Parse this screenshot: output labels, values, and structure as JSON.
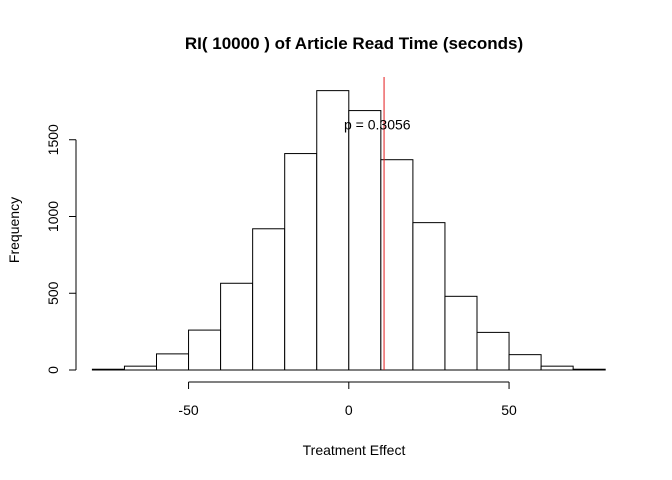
{
  "chart_data": {
    "type": "histogram",
    "title": "RI( 10000 ) of Article Read Time (seconds)",
    "xlabel": "Treatment Effect",
    "ylabel": "Frequency",
    "xlim": [
      -80,
      90
    ],
    "ylim": [
      0,
      1900
    ],
    "x_ticks": [
      -50,
      0,
      50
    ],
    "x_tick_labels": [
      "-50",
      "0",
      "50"
    ],
    "y_ticks": [
      0,
      500,
      1000,
      1500
    ],
    "y_tick_labels": [
      "0",
      "500",
      "1000",
      "1500"
    ],
    "bin_edges": [
      -80,
      -70,
      -60,
      -50,
      -40,
      -30,
      -20,
      -10,
      0,
      10,
      20,
      30,
      40,
      50,
      60,
      70,
      80
    ],
    "counts": [
      5,
      25,
      105,
      260,
      565,
      920,
      1410,
      1820,
      1690,
      1370,
      960,
      480,
      245,
      100,
      25,
      5
    ],
    "reference_line": {
      "x": 11,
      "color": "#e41a1c"
    },
    "annotation": {
      "text": "p =  0.3056",
      "x": 8,
      "y": 1600
    },
    "bar_fill": "#ffffff",
    "bar_stroke": "#000000",
    "grid": false
  }
}
